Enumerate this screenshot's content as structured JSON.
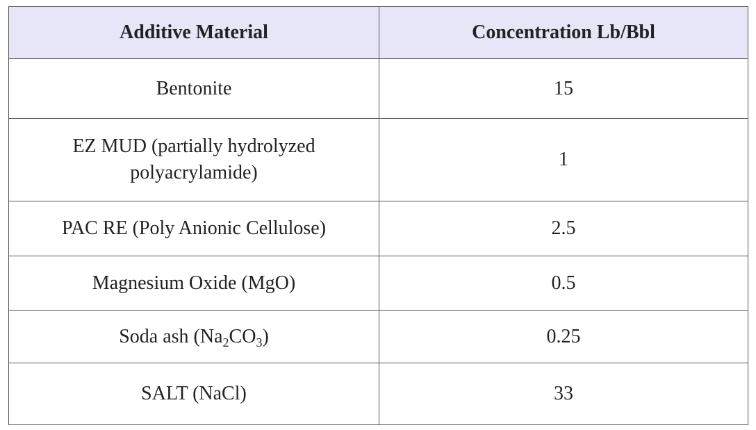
{
  "table": {
    "header": [
      "Additive Material",
      "Concentration Lb/Bbl"
    ],
    "rows": [
      [
        "Bentonite",
        "15"
      ],
      [
        "EZ MUD (partially hydrolyzed polyacrylamide)",
        "1"
      ],
      [
        "PAC RE (Poly Anionic Cellulose)",
        "2.5"
      ],
      [
        "Magnesium Oxide (MgO)",
        "0.5"
      ],
      [
        [
          "Soda ash (Na",
          "2",
          "CO",
          "3",
          ")"
        ],
        "0.25"
      ],
      [
        "SALT (NaCl)",
        "33"
      ]
    ]
  }
}
